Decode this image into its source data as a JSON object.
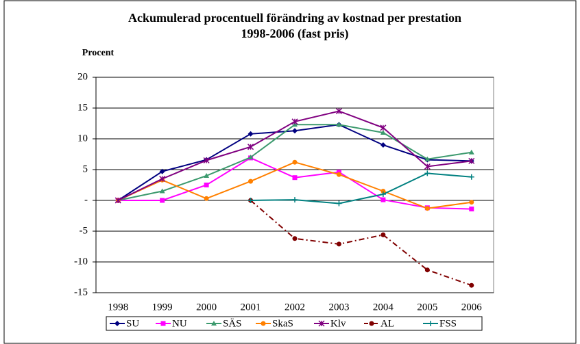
{
  "chart_data": {
    "type": "line",
    "title": [
      "Ackumulerad procentuell förändring av kostnad per prestation",
      "1998-2006 (fast pris)"
    ],
    "y_label": "Procent",
    "categories": [
      "1998",
      "1999",
      "2000",
      "2001",
      "2002",
      "2003",
      "2004",
      "2005",
      "2006"
    ],
    "ylim": [
      -15,
      20
    ],
    "yticks": [
      -15,
      -10,
      -5,
      {
        "value": 0,
        "label": "-"
      },
      5,
      10,
      15,
      20
    ],
    "grid": true,
    "legend": "bottom",
    "series": [
      {
        "name": "SU",
        "color": "#000080",
        "marker": "diamond",
        "values": [
          0,
          4.7,
          6.6,
          10.8,
          11.3,
          12.3,
          9.0,
          6.6,
          6.4
        ]
      },
      {
        "name": "NU",
        "color": "#ff00ff",
        "marker": "square",
        "values": [
          0,
          0,
          2.5,
          6.9,
          3.7,
          4.6,
          0.1,
          -1.2,
          -1.4
        ]
      },
      {
        "name": "SÄS",
        "color": "#3c9a6e",
        "marker": "triangle",
        "values": [
          0,
          1.5,
          4.0,
          7.0,
          12.3,
          12.3,
          11.0,
          6.7,
          7.8
        ]
      },
      {
        "name": "SkaS",
        "color": "#ff8000",
        "marker": "circle",
        "values": [
          0,
          3.3,
          0.3,
          3.1,
          6.2,
          4.2,
          1.5,
          -1.3,
          -0.3
        ]
      },
      {
        "name": "Klv",
        "color": "#800080",
        "marker": "star",
        "values": [
          0,
          3.5,
          6.5,
          8.7,
          12.8,
          14.5,
          11.8,
          5.5,
          6.4
        ]
      },
      {
        "name": "AL",
        "color": "#800000",
        "marker": "circle",
        "dash": true,
        "values": [
          null,
          null,
          null,
          0,
          -6.2,
          -7.1,
          -5.6,
          -11.3,
          -13.8
        ]
      },
      {
        "name": "FSS",
        "color": "#008080",
        "marker": "plus",
        "values": [
          null,
          null,
          null,
          0,
          0.1,
          -0.5,
          1.0,
          4.4,
          3.8
        ]
      }
    ]
  }
}
